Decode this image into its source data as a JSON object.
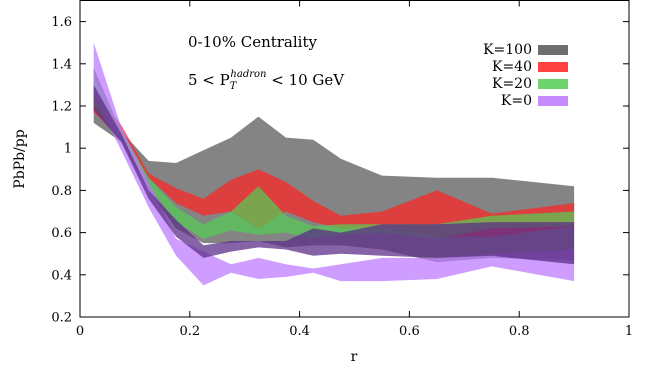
{
  "chart_data": {
    "type": "area",
    "xlabel": "r",
    "ylabel": "PbPb/pp",
    "xlim": [
      0,
      1
    ],
    "ylim": [
      0.2,
      1.7
    ],
    "x_ticks": [
      "0",
      "0.2",
      "0.4",
      "0.6",
      "0.8",
      "1"
    ],
    "y_ticks": [
      "0.2",
      "0.4",
      "0.6",
      "0.8",
      "1",
      "1.2",
      "1.4",
      "1.6"
    ],
    "annotations": {
      "centrality": "0-10% Centrality",
      "pt_prefix": "5 < P",
      "pt_sub": "T",
      "pt_sup": "hadron",
      "pt_suffix": " < 10 GeV"
    },
    "legend_position": "top-right",
    "x": [
      0.025,
      0.075,
      0.125,
      0.175,
      0.225,
      0.275,
      0.325,
      0.375,
      0.425,
      0.475,
      0.55,
      0.65,
      0.75,
      0.9
    ],
    "series": [
      {
        "name": "K=100",
        "color": "#555555",
        "lower": [
          1.12,
          1.03,
          0.8,
          0.62,
          0.55,
          0.55,
          0.56,
          0.53,
          0.54,
          0.54,
          0.52,
          0.46,
          0.48,
          0.47
        ],
        "upper": [
          1.38,
          1.08,
          0.94,
          0.93,
          0.99,
          1.05,
          1.15,
          1.05,
          1.04,
          0.95,
          0.87,
          0.86,
          0.86,
          0.82
        ]
      },
      {
        "name": "K=40",
        "color": "#ff2222",
        "lower": [
          1.17,
          1.05,
          0.86,
          0.74,
          0.68,
          0.7,
          0.62,
          0.7,
          0.65,
          0.62,
          0.62,
          0.58,
          0.58,
          0.63
        ],
        "upper": [
          1.28,
          1.11,
          0.88,
          0.81,
          0.76,
          0.85,
          0.9,
          0.84,
          0.75,
          0.68,
          0.7,
          0.8,
          0.69,
          0.74
        ]
      },
      {
        "name": "K=20",
        "color": "#55cc55",
        "lower": [
          1.2,
          1.04,
          0.82,
          0.65,
          0.57,
          0.61,
          0.59,
          0.6,
          0.57,
          0.59,
          0.6,
          0.57,
          0.62,
          0.63
        ],
        "upper": [
          1.34,
          1.09,
          0.86,
          0.72,
          0.64,
          0.7,
          0.82,
          0.68,
          0.63,
          0.64,
          0.64,
          0.64,
          0.68,
          0.7
        ]
      },
      {
        "name": "K=0",
        "color": "#bb77ff",
        "lower": [
          1.25,
          0.99,
          0.72,
          0.49,
          0.35,
          0.41,
          0.38,
          0.39,
          0.41,
          0.37,
          0.37,
          0.38,
          0.44,
          0.37
        ],
        "upper": [
          1.5,
          1.1,
          0.84,
          0.57,
          0.51,
          0.45,
          0.48,
          0.45,
          0.43,
          0.45,
          0.48,
          0.48,
          0.5,
          0.52
        ]
      },
      {
        "name": "",
        "color": "#5c2f88",
        "lower": [
          1.18,
          1.03,
          0.76,
          0.58,
          0.48,
          0.51,
          0.53,
          0.52,
          0.49,
          0.5,
          0.49,
          0.48,
          0.49,
          0.45
        ],
        "upper": [
          1.3,
          1.07,
          0.8,
          0.66,
          0.54,
          0.56,
          0.56,
          0.56,
          0.62,
          0.6,
          0.64,
          0.64,
          0.65,
          0.65
        ]
      }
    ]
  }
}
